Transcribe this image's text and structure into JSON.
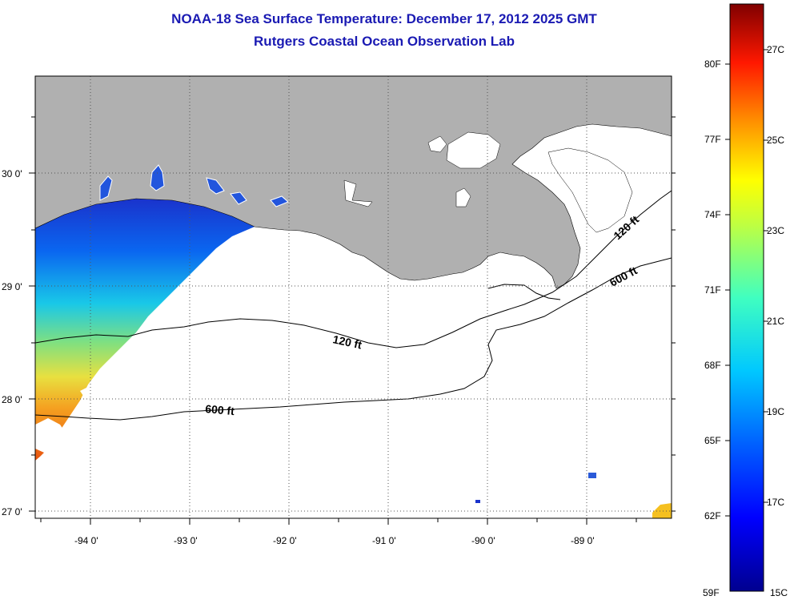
{
  "title": {
    "line1": "NOAA-18 Sea Surface Temperature:  December 17, 2012 2025 GMT",
    "line2": "Rutgers Coastal Ocean Observation Lab"
  },
  "map": {
    "x_ticks": [
      "-94 0'",
      "-93 0'",
      "-92 0'",
      "-91 0'",
      "-90 0'",
      "-89 0'"
    ],
    "y_ticks": [
      "30 0'",
      "29 0'",
      "28 0'",
      "27 0'"
    ],
    "contours": [
      {
        "label": "120 ft",
        "where": "central shelf"
      },
      {
        "label": "600 ft",
        "where": "western slope"
      },
      {
        "label": "120 ft",
        "where": "east near delta"
      },
      {
        "label": "600 ft",
        "where": "east near delta"
      }
    ],
    "land_color": "#b0b0b0",
    "cloud_color": "#ffffff"
  },
  "colorbar": {
    "f_labels": [
      "80F",
      "77F",
      "74F",
      "71F",
      "68F",
      "65F",
      "62F",
      "59F"
    ],
    "c_labels": [
      "27C",
      "25C",
      "23C",
      "21C",
      "19C",
      "17C",
      "15C"
    ],
    "range_c": [
      15,
      28
    ],
    "colors": [
      "#00008f",
      "#0000ff",
      "#0080ff",
      "#00ffff",
      "#80ff80",
      "#ffff00",
      "#ff8000",
      "#ff0000",
      "#800000"
    ]
  }
}
